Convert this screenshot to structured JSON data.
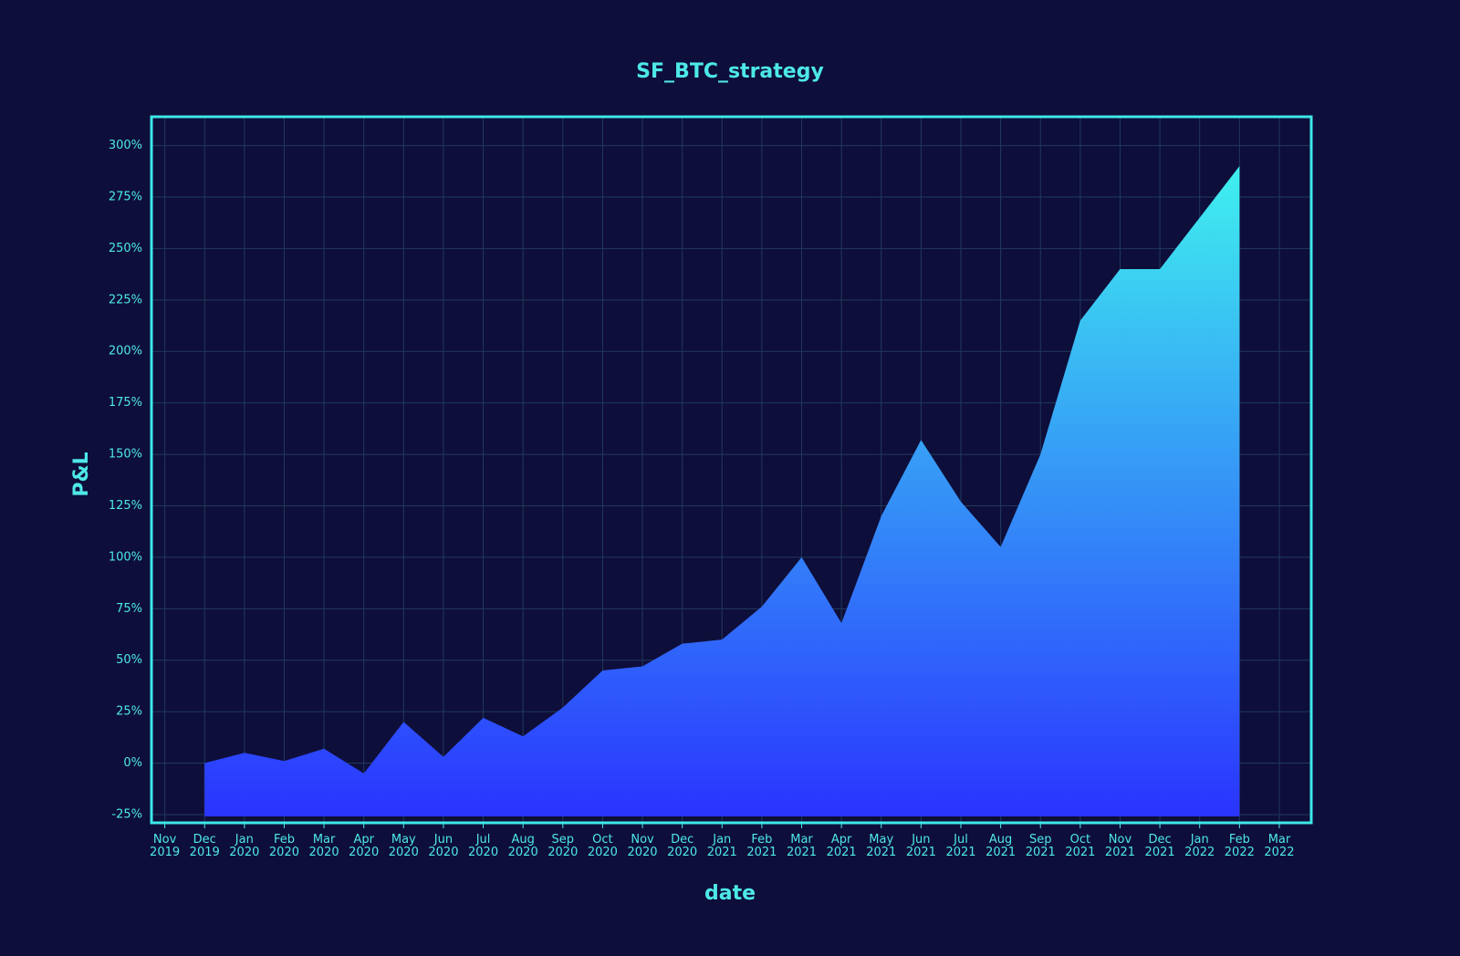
{
  "chart_data": {
    "type": "area",
    "title": "SF_BTC_strategy",
    "xlabel": "date",
    "ylabel": "P&L",
    "x": [
      "2019-12",
      "2020-01",
      "2020-02",
      "2020-03",
      "2020-04",
      "2020-05",
      "2020-06",
      "2020-07",
      "2020-08",
      "2020-09",
      "2020-10",
      "2020-11",
      "2020-12",
      "2021-01",
      "2021-02",
      "2021-03",
      "2021-04",
      "2021-05",
      "2021-06",
      "2021-07",
      "2021-08",
      "2021-09",
      "2021-10",
      "2021-11",
      "2021-12",
      "2022-01",
      "2022-02"
    ],
    "values": [
      0,
      5,
      1,
      7,
      -5,
      20,
      3,
      22,
      13,
      27,
      45,
      47,
      58,
      60,
      76,
      100,
      68,
      120,
      157,
      127,
      105,
      150,
      215,
      240,
      240,
      265,
      290
    ],
    "colors": [
      "#40f6ee",
      "#2a34ff"
    ],
    "ylim": [
      -29,
      314
    ],
    "yticks": [
      {
        "value": -25,
        "label": "-25%"
      },
      {
        "value": 0,
        "label": "0%"
      },
      {
        "value": 25,
        "label": "25%"
      },
      {
        "value": 50,
        "label": "50%"
      },
      {
        "value": 75,
        "label": "75%"
      },
      {
        "value": 100,
        "label": "100%"
      },
      {
        "value": 125,
        "label": "125%"
      },
      {
        "value": 150,
        "label": "150%"
      },
      {
        "value": 175,
        "label": "175%"
      },
      {
        "value": 200,
        "label": "200%"
      },
      {
        "value": 225,
        "label": "225%"
      },
      {
        "value": 250,
        "label": "250%"
      },
      {
        "value": 275,
        "label": "275%"
      },
      {
        "value": 300,
        "label": "300%"
      }
    ],
    "xticks": [
      {
        "value": "2019-11",
        "label": "Nov 2019"
      },
      {
        "value": "2019-12",
        "label": "Dec 2019"
      },
      {
        "value": "2020-01",
        "label": "Jan 2020"
      },
      {
        "value": "2020-02",
        "label": "Feb 2020"
      },
      {
        "value": "2020-03",
        "label": "Mar 2020"
      },
      {
        "value": "2020-04",
        "label": "Apr 2020"
      },
      {
        "value": "2020-05",
        "label": "May 2020"
      },
      {
        "value": "2020-06",
        "label": "Jun 2020"
      },
      {
        "value": "2020-07",
        "label": "Jul 2020"
      },
      {
        "value": "2020-08",
        "label": "Aug 2020"
      },
      {
        "value": "2020-09",
        "label": "Sep 2020"
      },
      {
        "value": "2020-10",
        "label": "Oct 2020"
      },
      {
        "value": "2020-11",
        "label": "Nov 2020"
      },
      {
        "value": "2020-12",
        "label": "Dec 2020"
      },
      {
        "value": "2021-01",
        "label": "Jan 2021"
      },
      {
        "value": "2021-02",
        "label": "Feb 2021"
      },
      {
        "value": "2021-03",
        "label": "Mar 2021"
      },
      {
        "value": "2021-04",
        "label": "Apr 2021"
      },
      {
        "value": "2021-05",
        "label": "May 2021"
      },
      {
        "value": "2021-06",
        "label": "Jun 2021"
      },
      {
        "value": "2021-07",
        "label": "Jul 2021"
      },
      {
        "value": "2021-08",
        "label": "Aug 2021"
      },
      {
        "value": "2021-09",
        "label": "Sep 2021"
      },
      {
        "value": "2021-10",
        "label": "Oct 2021"
      },
      {
        "value": "2021-11",
        "label": "Nov 2021"
      },
      {
        "value": "2021-12",
        "label": "Dec 2021"
      },
      {
        "value": "2022-01",
        "label": "Jan 2022"
      },
      {
        "value": "2022-02",
        "label": "Feb 2022"
      },
      {
        "value": "2022-03",
        "label": "Mar 2022"
      }
    ],
    "grid": true
  }
}
